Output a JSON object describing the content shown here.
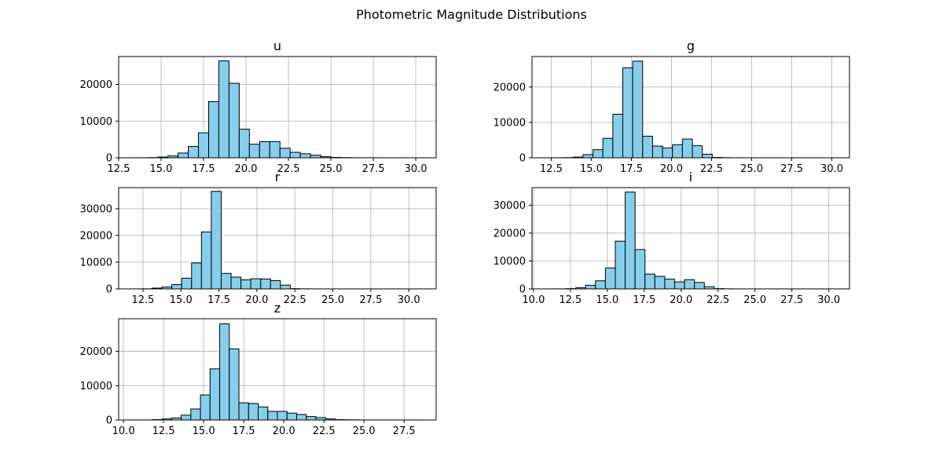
{
  "suptitle": "Photometric Magnitude Distributions",
  "colors": {
    "bar_fill": "#87ceeb",
    "bar_edge": "#000000",
    "grid": "#b0b0b0",
    "frame": "#000000"
  },
  "chart_data": [
    {
      "type": "bar",
      "title": "u",
      "xlabel": "",
      "ylabel": "",
      "grid": true,
      "xlim": [
        12.5,
        31.2
      ],
      "ylim": [
        0,
        27600
      ],
      "xticks": [
        "12.5",
        "15.0",
        "17.5",
        "20.0",
        "22.5",
        "25.0",
        "27.5",
        "30.0"
      ],
      "yticks": [
        "0",
        "10000",
        "20000"
      ],
      "bin_edges": [
        13.0,
        13.6,
        14.2,
        14.8,
        15.4,
        16.0,
        16.6,
        17.2,
        17.8,
        18.4,
        19.0,
        19.6,
        20.2,
        20.8,
        21.4,
        22.0,
        22.6,
        23.2,
        23.8,
        24.4,
        25.0,
        25.6,
        26.2,
        26.8,
        27.4,
        28.0,
        28.6,
        29.2,
        29.8,
        30.4,
        31.0
      ],
      "counts": [
        10,
        20,
        50,
        200,
        500,
        1300,
        3100,
        6800,
        15300,
        26400,
        20300,
        7800,
        3700,
        4400,
        4400,
        2600,
        1500,
        1100,
        700,
        300,
        100,
        50,
        20,
        10,
        10,
        5,
        5,
        5,
        5,
        5
      ]
    },
    {
      "type": "bar",
      "title": "g",
      "xlabel": "",
      "ylabel": "",
      "grid": true,
      "xlim": [
        11.3,
        31.1
      ],
      "ylim": [
        0,
        28600
      ],
      "xticks": [
        "12.5",
        "15.0",
        "17.5",
        "20.0",
        "22.5",
        "25.0",
        "27.5",
        "30.0"
      ],
      "yticks": [
        "0",
        "10000",
        "20000"
      ],
      "bin_edges": [
        12.0,
        12.62,
        13.24,
        13.86,
        14.48,
        15.1,
        15.72,
        16.34,
        16.96,
        17.58,
        18.2,
        18.82,
        19.44,
        20.06,
        20.68,
        21.3,
        21.92,
        22.54,
        23.16,
        23.78,
        24.4,
        25.02,
        25.64,
        26.26,
        26.88,
        27.5,
        28.12,
        28.74,
        29.36,
        29.98,
        30.6
      ],
      "counts": [
        10,
        20,
        50,
        200,
        900,
        2300,
        5500,
        12300,
        25400,
        27300,
        6100,
        3300,
        2800,
        3700,
        5300,
        3400,
        1000,
        100,
        30,
        10,
        10,
        5,
        5,
        5,
        5,
        5,
        5,
        5,
        5,
        5
      ]
    },
    {
      "type": "bar",
      "title": "r",
      "xlabel": "",
      "ylabel": "",
      "grid": true,
      "xlim": [
        10.9,
        31.8
      ],
      "ylim": [
        0,
        37900
      ],
      "xticks": [
        "12.5",
        "15.0",
        "17.5",
        "20.0",
        "22.5",
        "25.0",
        "27.5",
        "30.0"
      ],
      "yticks": [
        "0",
        "10000",
        "20000",
        "30000"
      ],
      "bin_edges": [
        11.8,
        12.45,
        13.1,
        13.75,
        14.4,
        15.05,
        15.7,
        16.35,
        17.0,
        17.65,
        18.3,
        18.95,
        19.6,
        20.25,
        20.9,
        21.55,
        22.2,
        22.85,
        23.5,
        24.15,
        24.8,
        25.45,
        26.1,
        26.75,
        27.4,
        28.05,
        28.7,
        29.35,
        30.0,
        30.65,
        31.3
      ],
      "counts": [
        10,
        50,
        300,
        700,
        1600,
        4000,
        9700,
        21300,
        36500,
        5800,
        4400,
        3400,
        3800,
        3700,
        3100,
        1400,
        100,
        30,
        10,
        10,
        5,
        5,
        5,
        5,
        5,
        5,
        5,
        5,
        5,
        5
      ]
    },
    {
      "type": "bar",
      "title": "i",
      "xlabel": "",
      "ylabel": "",
      "grid": true,
      "xlim": [
        9.9,
        31.4
      ],
      "ylim": [
        0,
        36300
      ],
      "xticks": [
        "10.0",
        "12.5",
        "15.0",
        "17.5",
        "20.0",
        "22.5",
        "25.0",
        "27.5",
        "30.0"
      ],
      "yticks": [
        "0",
        "10000",
        "20000",
        "30000"
      ],
      "bin_edges": [
        10.85,
        11.52,
        12.19,
        12.86,
        13.53,
        14.2,
        14.87,
        15.54,
        16.21,
        16.88,
        17.55,
        18.22,
        18.89,
        19.56,
        20.23,
        20.9,
        21.57,
        22.24,
        22.91,
        23.58,
        24.25,
        24.92,
        25.59,
        26.26,
        26.93,
        27.6,
        28.27,
        28.94,
        29.61,
        30.28,
        30.95
      ],
      "counts": [
        10,
        20,
        100,
        400,
        1300,
        2900,
        7500,
        17100,
        34700,
        14100,
        5300,
        4500,
        3500,
        2500,
        3300,
        2300,
        800,
        100,
        30,
        10,
        5,
        5,
        5,
        5,
        5,
        5,
        5,
        5,
        5,
        5
      ]
    },
    {
      "type": "bar",
      "title": "z",
      "xlabel": "",
      "ylabel": "",
      "grid": true,
      "xlim": [
        9.7,
        29.5
      ],
      "ylim": [
        0,
        29500
      ],
      "xticks": [
        "10.0",
        "12.5",
        "15.0",
        "17.5",
        "20.0",
        "22.5",
        "25.0",
        "27.5"
      ],
      "yticks": [
        "0",
        "10000",
        "20000"
      ],
      "bin_edges": [
        10.6,
        11.2,
        11.8,
        12.4,
        13.0,
        13.6,
        14.2,
        14.8,
        15.4,
        16.0,
        16.6,
        17.2,
        17.8,
        18.4,
        19.0,
        19.6,
        20.2,
        20.8,
        21.4,
        22.0,
        22.6,
        23.2,
        23.8,
        24.4,
        25.0,
        25.6,
        26.2,
        26.8,
        27.4,
        28.0,
        28.6
      ],
      "counts": [
        10,
        20,
        100,
        300,
        600,
        1400,
        3200,
        7300,
        14900,
        28000,
        20700,
        5000,
        4800,
        3800,
        2500,
        2500,
        2000,
        1600,
        1000,
        700,
        300,
        100,
        50,
        20,
        10,
        10,
        5,
        5,
        5,
        5
      ]
    }
  ]
}
